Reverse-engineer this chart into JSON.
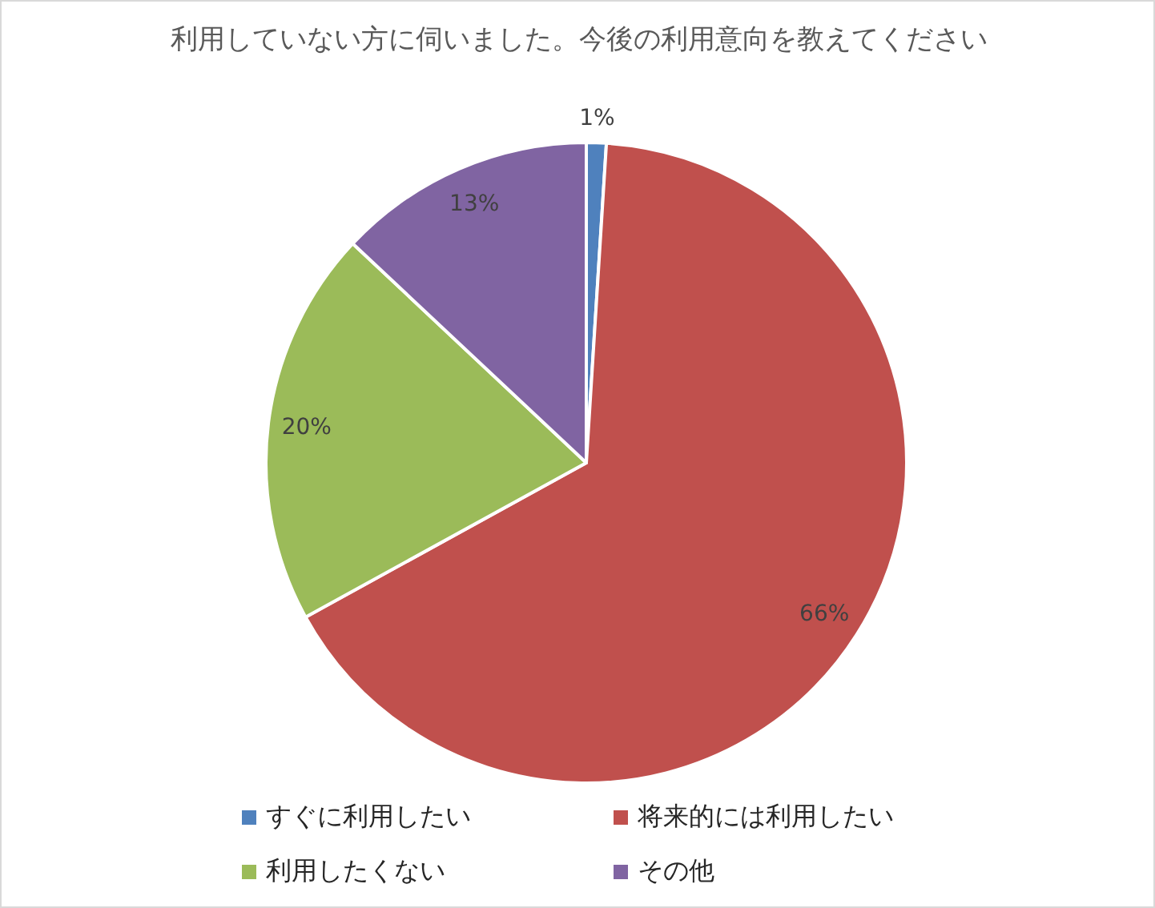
{
  "chart_data": {
    "type": "pie",
    "title": "利用していない方に伺いました。今後の利用意向を教えてください",
    "categories": [
      "すぐに利用したい",
      "将来的には利用したい",
      "利用したくない",
      "その他"
    ],
    "values": [
      1,
      66,
      20,
      13
    ],
    "colors": [
      "#4f81bd",
      "#c0504d",
      "#9bbb59",
      "#8064a2"
    ],
    "value_labels": [
      "1%",
      "66%",
      "20%",
      "13%"
    ],
    "legend": "bottom"
  }
}
